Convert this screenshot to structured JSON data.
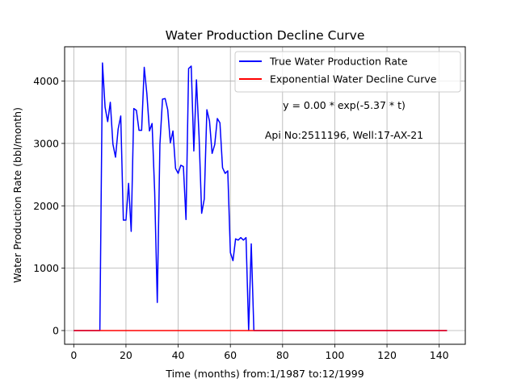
{
  "chart_data": {
    "type": "line",
    "title": "Water Production Decline Curve",
    "xlabel": "Time (months) from:1/1987 to:12/1999",
    "ylabel": "Water Production Rate (bbl/month)",
    "xlim": [
      -3.5,
      150
    ],
    "ylim": [
      -220,
      4550
    ],
    "xticks": [
      0,
      20,
      40,
      60,
      80,
      100,
      120,
      140
    ],
    "yticks": [
      0,
      1000,
      2000,
      3000,
      4000
    ],
    "grid": true,
    "legend_position": "top-right",
    "annotations": [
      "y = 0.00 * exp(-5.37 * t)",
      "Api No:2511196, Well:17-AX-21"
    ],
    "series": [
      {
        "name": "True Water Production Rate",
        "color": "#0000ff",
        "x": [
          0,
          10,
          11,
          12,
          13,
          14,
          15,
          16,
          17,
          18,
          19,
          20,
          21,
          22,
          23,
          24,
          25,
          26,
          27,
          28,
          29,
          30,
          31,
          32,
          33,
          34,
          35,
          36,
          37,
          38,
          39,
          40,
          41,
          42,
          43,
          44,
          45,
          46,
          47,
          48,
          49,
          50,
          51,
          52,
          53,
          54,
          55,
          56,
          57,
          58,
          59,
          60,
          61,
          62,
          63,
          64,
          65,
          66,
          67,
          68,
          69,
          70,
          143
        ],
        "y": [
          0,
          0,
          4290,
          3580,
          3350,
          3660,
          2990,
          2780,
          3230,
          3440,
          1770,
          1770,
          2360,
          1590,
          3560,
          3530,
          3210,
          3210,
          4220,
          3800,
          3200,
          3320,
          2220,
          450,
          2980,
          3710,
          3720,
          3540,
          3010,
          3200,
          2600,
          2520,
          2650,
          2630,
          1780,
          4200,
          4240,
          2880,
          4020,
          3120,
          1880,
          2110,
          3540,
          3360,
          2840,
          2980,
          3400,
          3330,
          2610,
          2520,
          2560,
          1250,
          1120,
          1470,
          1450,
          1490,
          1450,
          1490,
          0,
          1390,
          0,
          0,
          0
        ]
      },
      {
        "name": "Exponential Water Decline Curve",
        "color": "#ff0000",
        "x": [
          0,
          143
        ],
        "y": [
          0,
          0
        ]
      }
    ]
  }
}
